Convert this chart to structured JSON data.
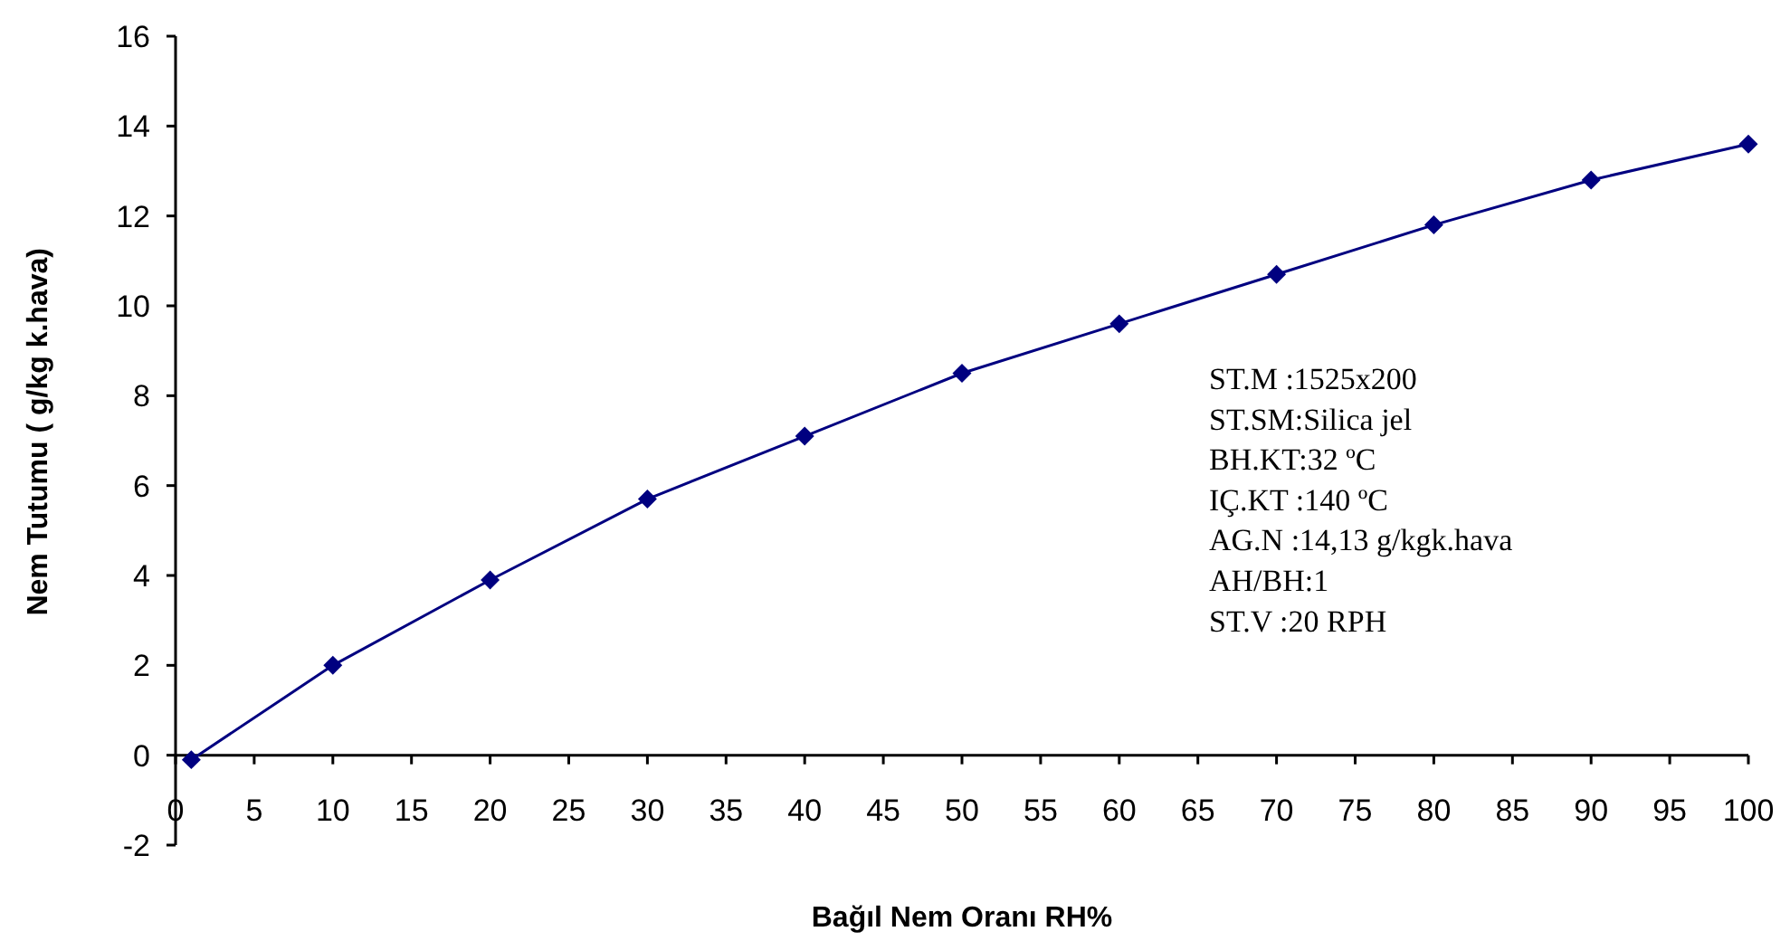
{
  "chart_data": {
    "type": "line",
    "xlabel": "Bağıl Nem Oranı RH%",
    "ylabel": "Nem Tutumu  ( g/kg k.hava)",
    "x": [
      1,
      10,
      20,
      30,
      40,
      50,
      60,
      70,
      80,
      90,
      100
    ],
    "series": [
      {
        "color": "#000080",
        "values": [
          -0.1,
          2.0,
          3.9,
          5.7,
          7.1,
          8.5,
          9.6,
          10.7,
          11.8,
          12.8,
          13.6
        ]
      }
    ],
    "xlim": [
      0,
      100
    ],
    "xticks": [
      0,
      5,
      10,
      15,
      20,
      25,
      30,
      35,
      40,
      45,
      50,
      55,
      60,
      65,
      70,
      75,
      80,
      85,
      90,
      95,
      100
    ],
    "ylim": [
      -2,
      16
    ],
    "yticks": [
      -2,
      0,
      2,
      4,
      6,
      8,
      10,
      12,
      14,
      16
    ],
    "marker": "diamond",
    "line_style": "solid",
    "grid": false,
    "annotations": [
      "ST.M  :1525x200",
      "ST.SM:Silica jel",
      "BH.KT:32 ºC",
      "IÇ.KT :140 ºC",
      "AG.N  :14,13 g/kgk.hava",
      "AH/BH:1",
      "ST.V   :20 RPH"
    ]
  }
}
